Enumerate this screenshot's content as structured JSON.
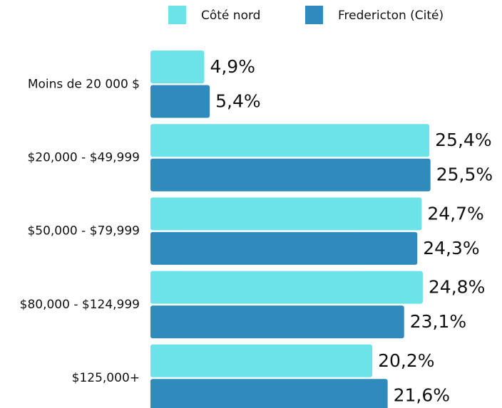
{
  "chart_data": {
    "type": "bar",
    "orientation": "horizontal",
    "categories": [
      "Moins de 20 000 $",
      "$20,000 - $49,999",
      "$50,000 - $79,999",
      "$80,000 - $124,999",
      "$125,000+"
    ],
    "series": [
      {
        "name": "Côté nord",
        "color": "#6be3e8",
        "values": [
          4.9,
          25.4,
          24.7,
          24.8,
          20.2
        ],
        "value_labels": [
          "4,9%",
          "25,4%",
          "24,7%",
          "24,8%",
          "20,2%"
        ]
      },
      {
        "name": "Fredericton (Cité)",
        "color": "#2e8bbb",
        "values": [
          5.4,
          25.5,
          24.3,
          23.1,
          21.6
        ],
        "value_labels": [
          "5,4%",
          "25,5%",
          "24,3%",
          "23,1%",
          "21,6%"
        ]
      }
    ]
  }
}
